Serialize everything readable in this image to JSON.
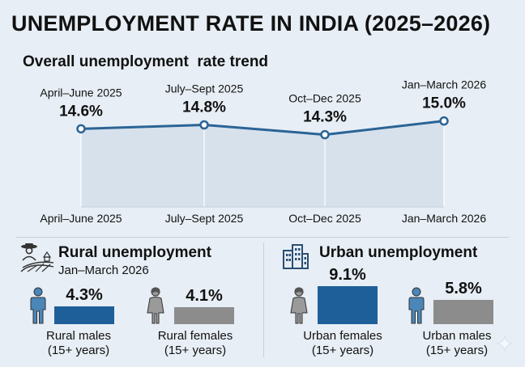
{
  "title": "UNEMPLOYMENT RATE IN INDIA (2025–2026)",
  "subtitle": "Overall unemployment  rate trend",
  "colors": {
    "line": "#2a6496",
    "area": "#d3deea",
    "rural_bar": "#1f5f99",
    "urban_female_bar": "#1f5f99",
    "gray_bar": "#8c8c8c",
    "icon_blue": "#4a86b8",
    "icon_gray": "#9a9a9a"
  },
  "chart_data": [
    {
      "type": "line",
      "title": "Overall unemployment  rate trend",
      "categories": [
        "April–June 2025",
        "July–Sept 2025",
        "Oct–Dec 2025",
        "Jan–March 2026"
      ],
      "point_labels": [
        "April–June 2025",
        "July–Sept 2025",
        "Oct–Dec 2025",
        "Jan–March 2026"
      ],
      "values": [
        14.6,
        14.8,
        14.3,
        15.0
      ],
      "value_labels": [
        "14.6%",
        "14.8%",
        "14.3%",
        "15.0%"
      ],
      "unit": "%",
      "ylim": [
        10.6,
        15.4
      ],
      "grid": false,
      "legend": "none"
    },
    {
      "type": "bar",
      "title": "Rural unemployment",
      "subtitle": "Jan–March 2026",
      "categories": [
        "Rural males\n(15+ years)",
        "Rural females\n(15+ years)"
      ],
      "category_lines": [
        [
          "Rural males",
          "(15+ years)"
        ],
        [
          "Rural females",
          "(15+ years)"
        ]
      ],
      "values": [
        4.3,
        4.1
      ],
      "value_labels": [
        "4.3%",
        "4.1%"
      ],
      "icons": [
        "male-person-icon",
        "female-person-icon"
      ],
      "ylim": [
        0,
        9.1
      ]
    },
    {
      "type": "bar",
      "title": "Urban unemployment",
      "categories": [
        "Urban females\n(15+ years)",
        "Urban males\n(15+ years)"
      ],
      "category_lines": [
        [
          "Urban females",
          "(15+ years)"
        ],
        [
          "Urban males",
          "(15+ years)"
        ]
      ],
      "values": [
        9.1,
        5.8
      ],
      "value_labels": [
        "9.1%",
        "5.8%"
      ],
      "icons": [
        "female-person-icon",
        "male-person-icon"
      ],
      "ylim": [
        0,
        9.1
      ]
    }
  ]
}
